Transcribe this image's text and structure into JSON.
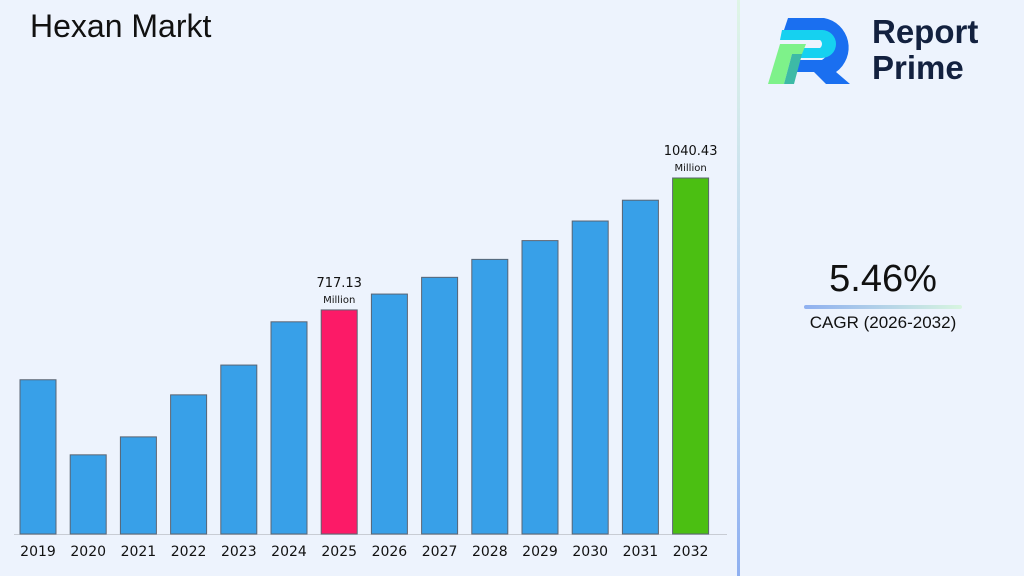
{
  "brand": {
    "name_line1": "Report",
    "name_line2": "Prime"
  },
  "cagr": {
    "value": "5.46%",
    "label": "CAGR (2026-2032)"
  },
  "colors": {
    "default_bar": "#38a0e8",
    "highlight_2025": "#fc1a67",
    "highlight_2032": "#4bbf12",
    "background": "#edf3fd"
  },
  "chart_data": {
    "type": "bar",
    "title": "Hexan Markt",
    "categories": [
      "2019",
      "2020",
      "2021",
      "2022",
      "2023",
      "2024",
      "2025",
      "2026",
      "2027",
      "2028",
      "2029",
      "2030",
      "2031",
      "2032"
    ],
    "values": [
      546,
      362,
      406,
      509,
      582,
      688,
      717.13,
      756,
      797,
      841,
      887,
      935,
      986,
      1040.43
    ],
    "data_labels": [
      {
        "category": "2025",
        "value": "717.13",
        "unit": "Million"
      },
      {
        "category": "2032",
        "value": "1040.43",
        "unit": "Million"
      }
    ],
    "unit": "Million",
    "ylim": [
      168,
      1185
    ],
    "grid": false,
    "legend": "none"
  }
}
